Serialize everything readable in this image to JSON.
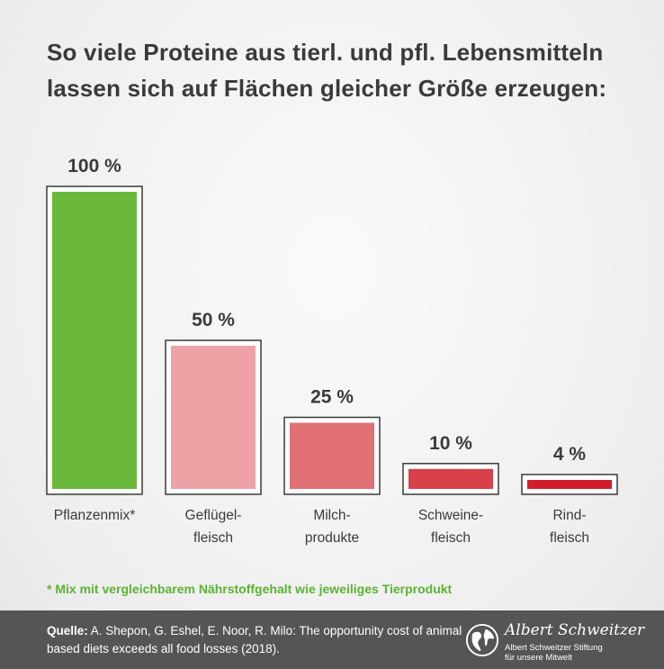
{
  "title_lines": [
    "So viele Proteine aus tierl. und pfl. Lebensmitteln",
    "lassen sich auf Flächen gleicher Größe erzeugen:"
  ],
  "chart_data": {
    "type": "bar",
    "categories": [
      [
        "Pflanzenmix*"
      ],
      [
        "Geflügel-",
        "fleisch"
      ],
      [
        "Milch-",
        "produkte"
      ],
      [
        "Schweine-",
        "fleisch"
      ],
      [
        "Rind-",
        "fleisch"
      ]
    ],
    "values": [
      100,
      50,
      25,
      10,
      4
    ],
    "value_labels": [
      "100 %",
      "50 %",
      "25 %",
      "10 %",
      "4 %"
    ],
    "colors": [
      "#6ab83c",
      "#eda3a5",
      "#e07074",
      "#d8414a",
      "#cf1f2a"
    ],
    "ylim": [
      0,
      100
    ]
  },
  "footnote": "* Mix mit vergleichbarem Nährstoffgehalt wie jeweiliges Tierprodukt",
  "footer": {
    "source_label": "Quelle:",
    "source_text": " A. Shepon, G. Eshel, E. Noor, R. Milo: The opportunity cost of animal based diets exceeds all food losses (2018).",
    "logo_script": "Albert Schweitzer",
    "logo_line1": "Albert Schweitzer Stiftung",
    "logo_line2": "für unsere Mitwelt"
  },
  "icons": {
    "logo": "globe-icon"
  }
}
